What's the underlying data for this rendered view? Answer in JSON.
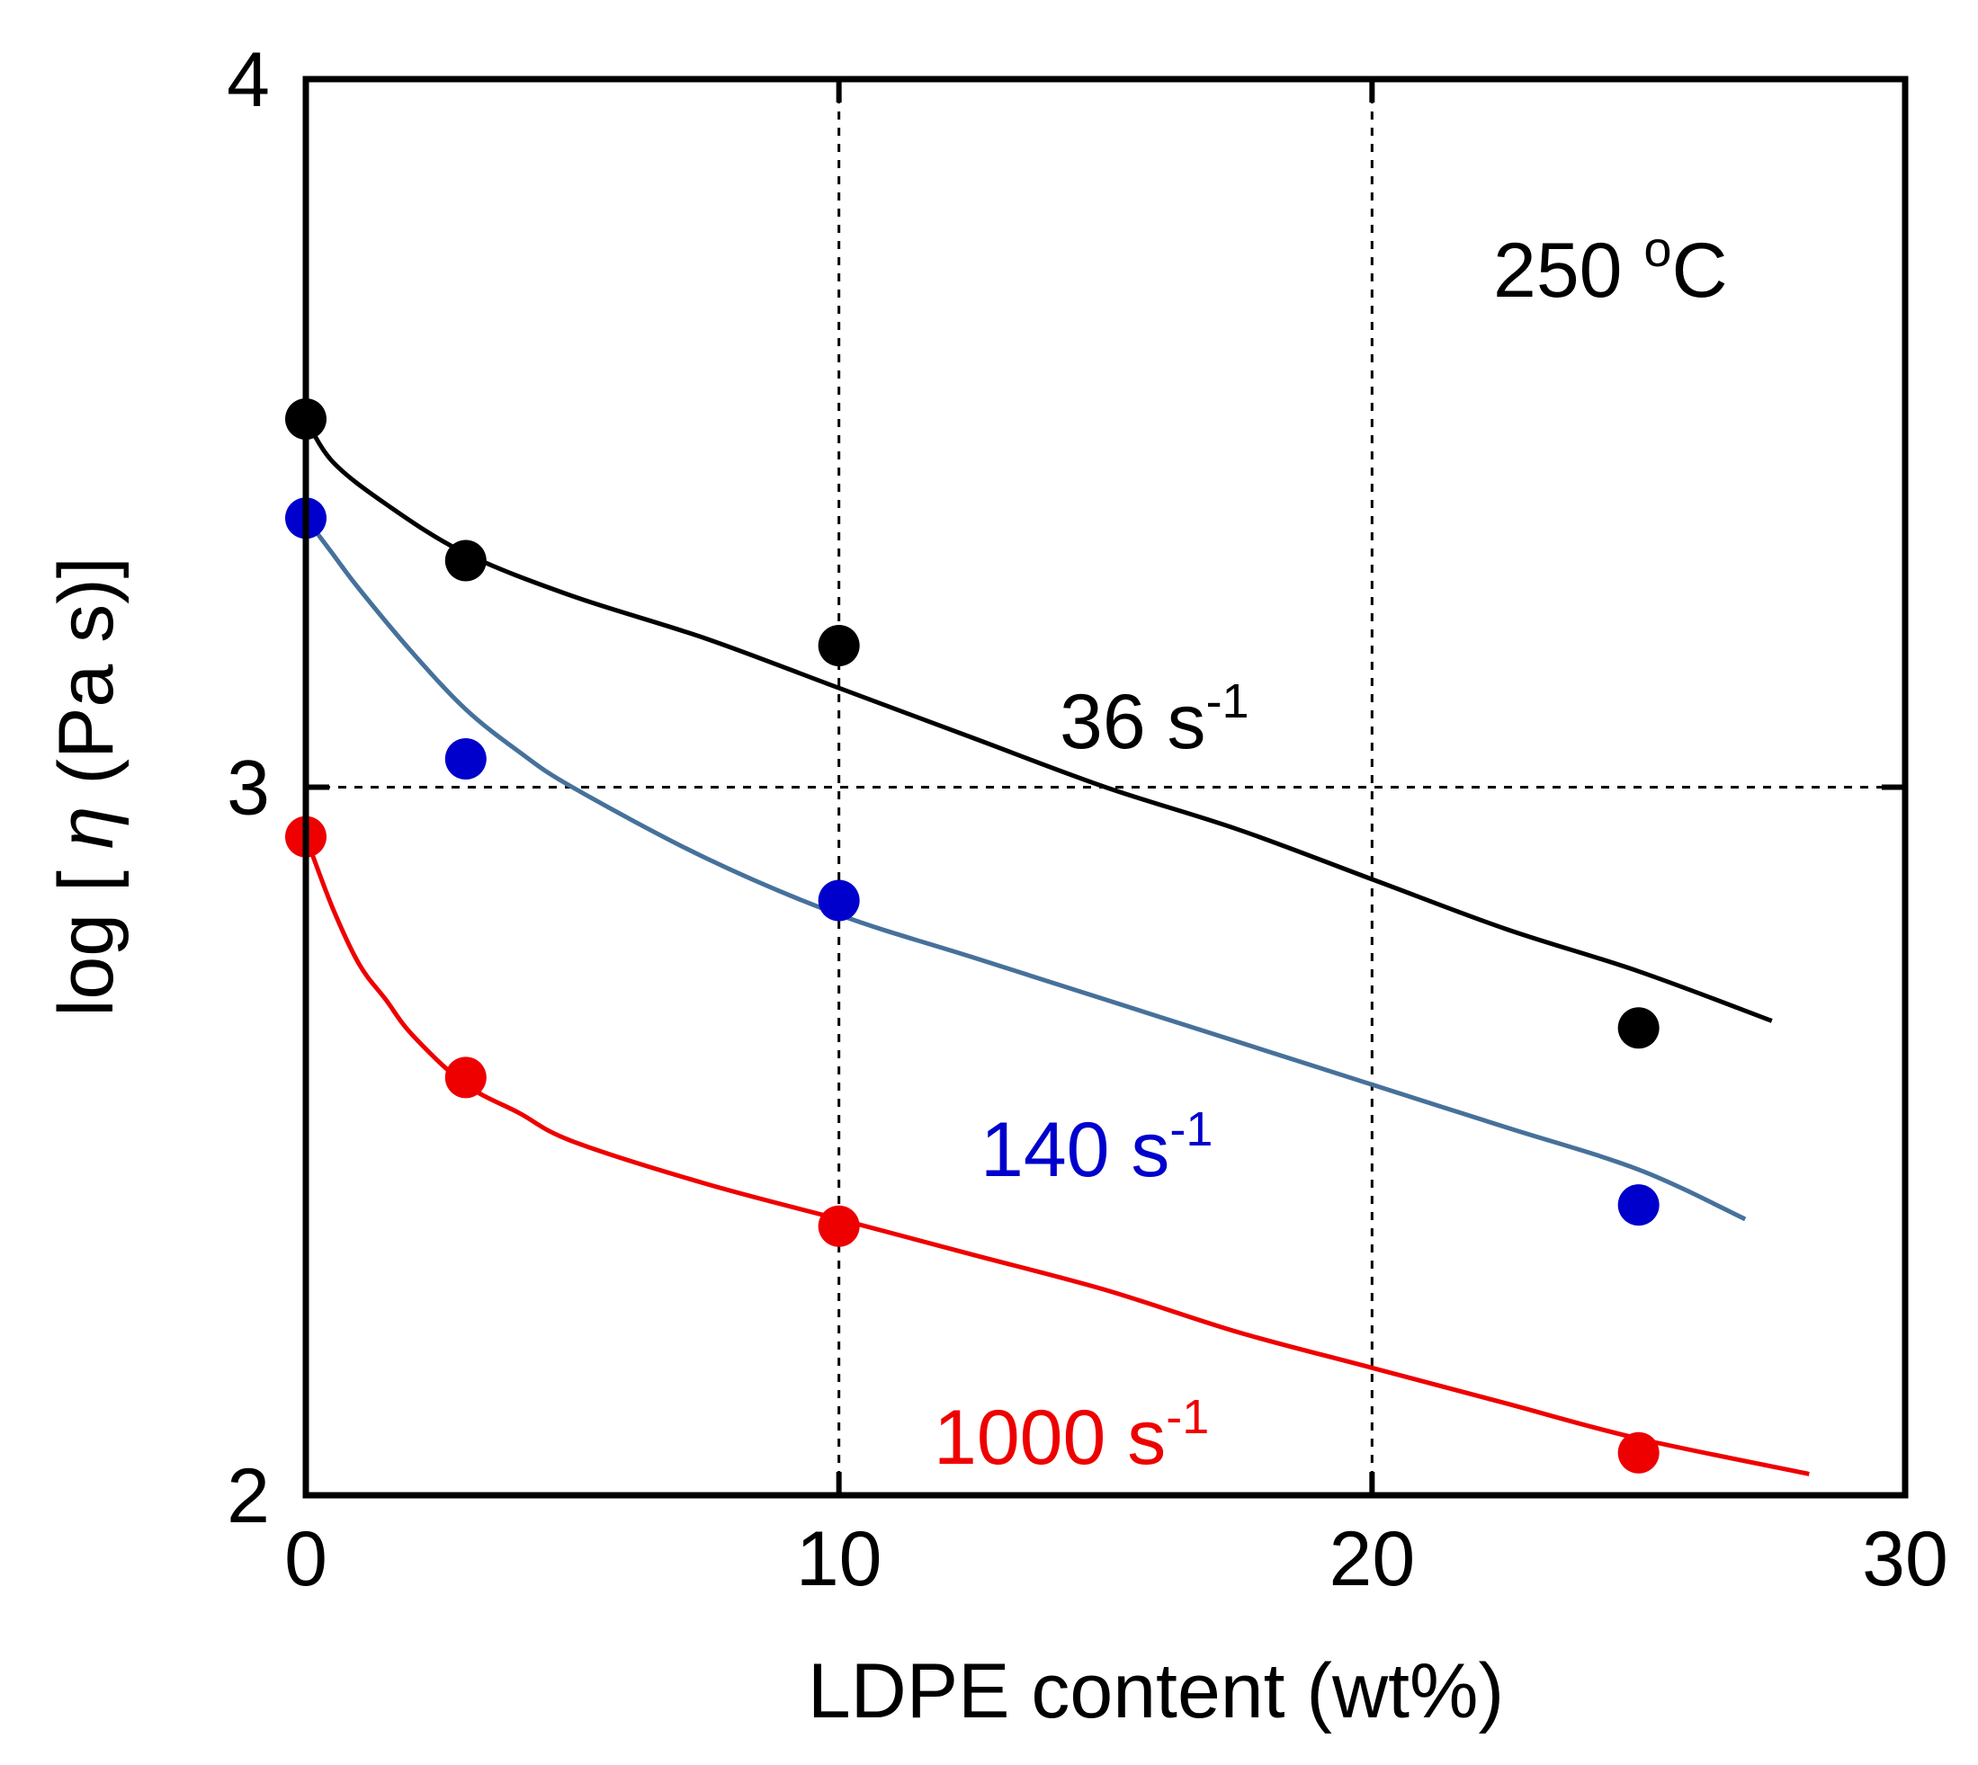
{
  "chart_data": {
    "type": "scatter",
    "title": "",
    "xlabel": "LDPE content (wt%)",
    "ylabel": {
      "prefix": "log [ ",
      "symbol": "η",
      "suffix": " (Pa s)]"
    },
    "xlim": [
      0,
      30
    ],
    "ylim": [
      2,
      4
    ],
    "x_ticks": [
      0,
      10,
      20,
      30
    ],
    "y_ticks": [
      2,
      3,
      4
    ],
    "gridlines": {
      "x": [
        10,
        20
      ],
      "y": [
        3
      ]
    },
    "annotation": {
      "value": "250 ",
      "degree": "o",
      "unit": "C"
    },
    "series": [
      {
        "name": "36 s-1",
        "label": {
          "base": "36 s",
          "sup": "-1"
        },
        "color": "#000000",
        "curve_color": "#000000",
        "x": [
          0,
          3,
          10,
          25
        ],
        "values": [
          3.52,
          3.32,
          3.2,
          2.66
        ],
        "fit": [
          [
            0,
            3.52
          ],
          [
            0.5,
            3.46
          ],
          [
            1.5,
            3.4
          ],
          [
            3,
            3.33
          ],
          [
            5,
            3.27
          ],
          [
            7.5,
            3.21
          ],
          [
            10,
            3.14
          ],
          [
            12.5,
            3.07
          ],
          [
            15,
            3.0
          ],
          [
            17.5,
            2.94
          ],
          [
            20,
            2.87
          ],
          [
            22.5,
            2.8
          ],
          [
            25,
            2.74
          ],
          [
            27.5,
            2.67
          ]
        ]
      },
      {
        "name": "140 s-1",
        "label": {
          "base": "140 s",
          "sup": "-1"
        },
        "color": "#0000cc",
        "curve_color": "#46719b",
        "x": [
          0,
          3,
          10,
          25
        ],
        "values": [
          3.38,
          3.04,
          2.84,
          2.41
        ],
        "fit": [
          [
            0,
            3.38
          ],
          [
            0.5,
            3.33
          ],
          [
            1,
            3.28
          ],
          [
            2,
            3.19
          ],
          [
            3,
            3.11
          ],
          [
            4,
            3.05
          ],
          [
            5,
            3.0
          ],
          [
            7.5,
            2.9
          ],
          [
            10,
            2.82
          ],
          [
            12.5,
            2.76
          ],
          [
            15,
            2.7
          ],
          [
            17.5,
            2.64
          ],
          [
            20,
            2.58
          ],
          [
            22.5,
            2.52
          ],
          [
            25,
            2.46
          ],
          [
            27,
            2.39
          ]
        ]
      },
      {
        "name": "1000 s-1",
        "label": {
          "base": "1000 s",
          "sup": "-1"
        },
        "color": "#ee0000",
        "curve_color": "#ee0000",
        "x": [
          0,
          3,
          10,
          25
        ],
        "values": [
          2.93,
          2.59,
          2.38,
          2.06
        ],
        "fit": [
          [
            0,
            2.93
          ],
          [
            0.5,
            2.83
          ],
          [
            1,
            2.75
          ],
          [
            1.5,
            2.7
          ],
          [
            2,
            2.65
          ],
          [
            3,
            2.58
          ],
          [
            4,
            2.54
          ],
          [
            5,
            2.5
          ],
          [
            7.5,
            2.44
          ],
          [
            10,
            2.39
          ],
          [
            12.5,
            2.34
          ],
          [
            15,
            2.29
          ],
          [
            17.5,
            2.23
          ],
          [
            20,
            2.18
          ],
          [
            22.5,
            2.13
          ],
          [
            25,
            2.08
          ],
          [
            28.2,
            2.03
          ]
        ]
      }
    ]
  }
}
